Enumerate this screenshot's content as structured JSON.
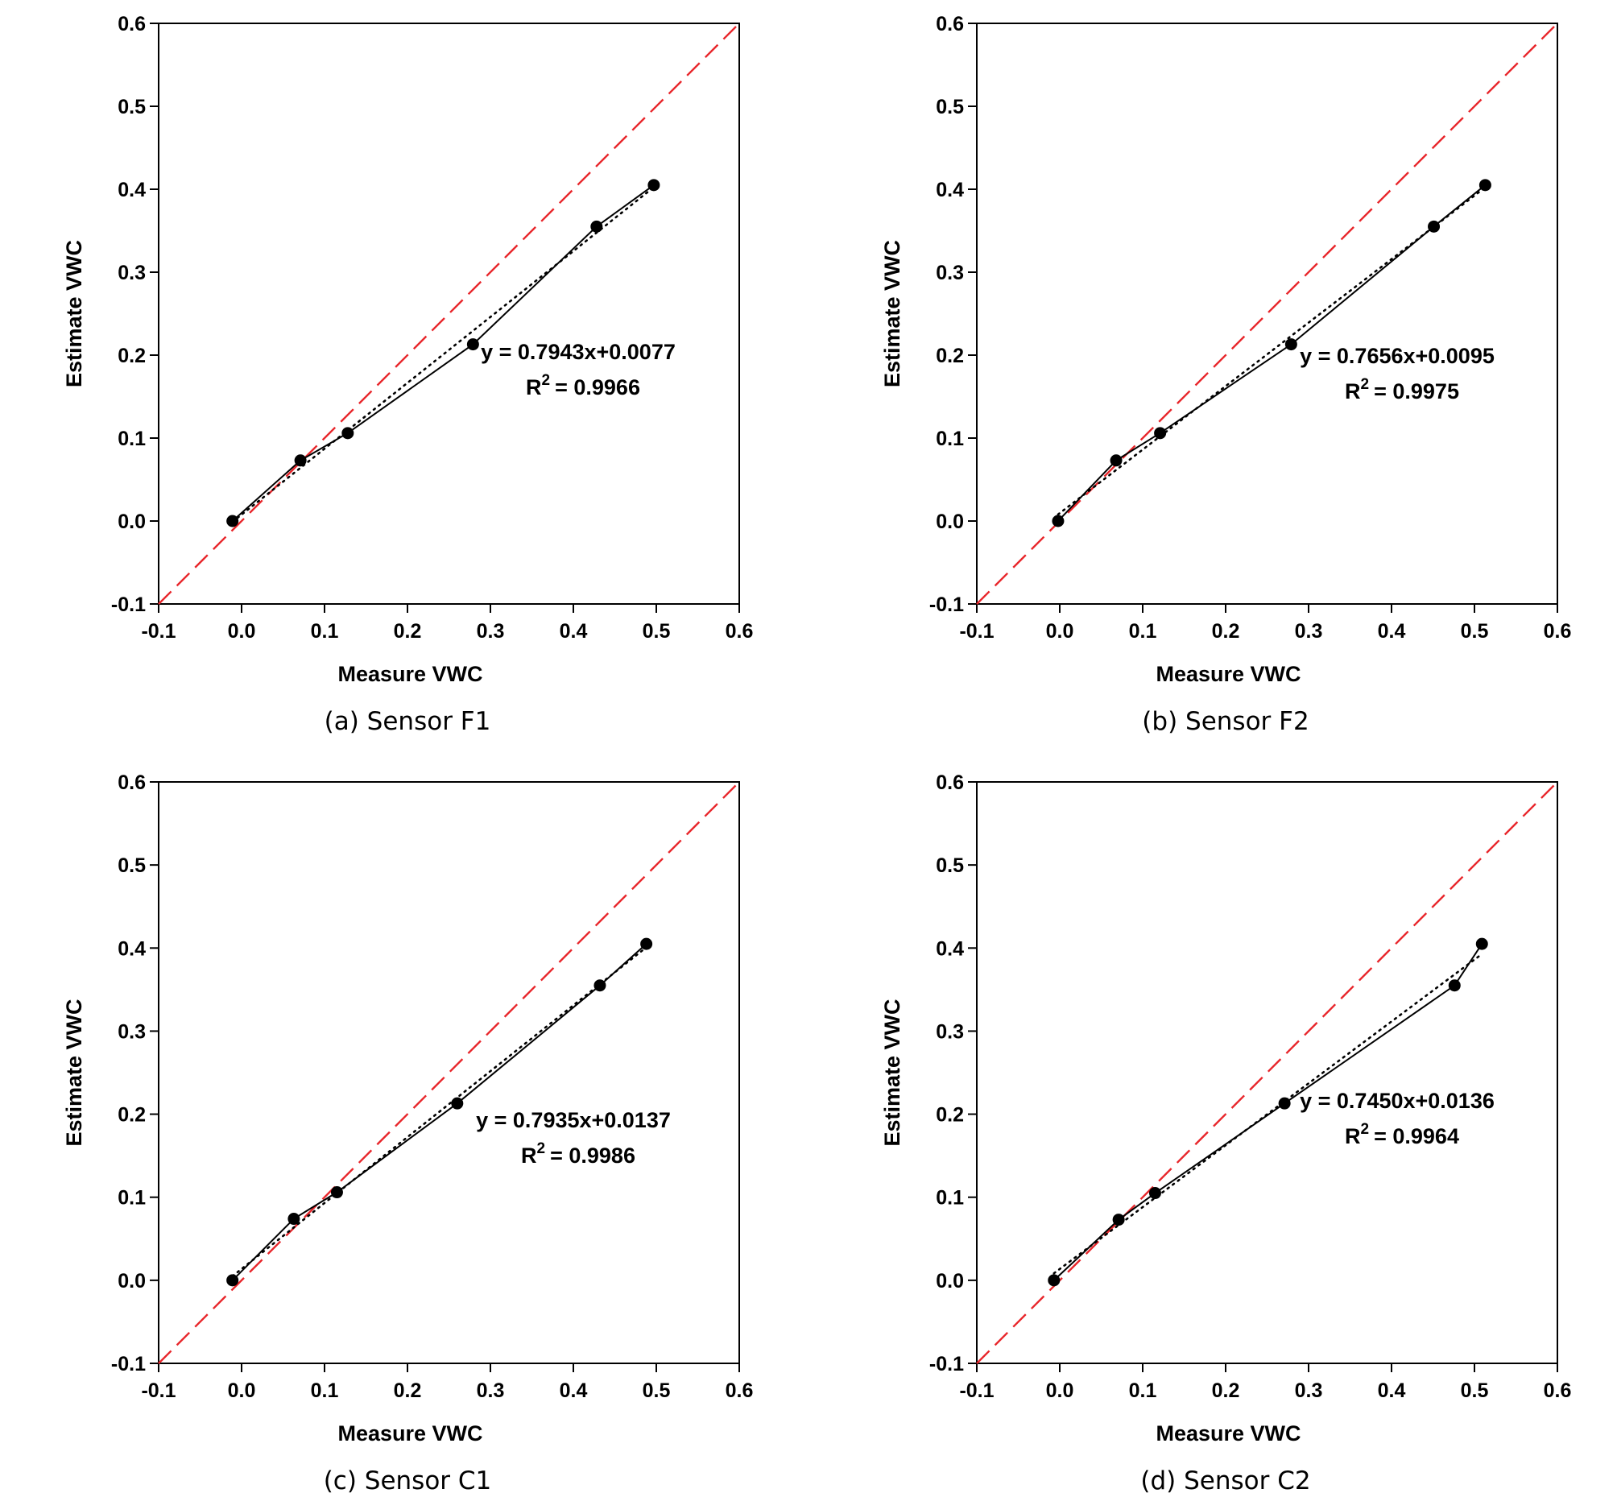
{
  "chart_data": [
    {
      "type": "line",
      "caption": "(a)  Sensor  F1",
      "xlabel": "Measure VWC",
      "ylabel": "Estimate VWC",
      "xlim": [
        -0.1,
        0.6
      ],
      "ylim": [
        -0.1,
        0.6
      ],
      "xticks": [
        "-0.1",
        "0.0",
        "0.1",
        "0.2",
        "0.3",
        "0.4",
        "0.5",
        "0.6"
      ],
      "yticks": [
        "-0.1",
        "0.0",
        "0.1",
        "0.2",
        "0.3",
        "0.4",
        "0.5",
        "0.6"
      ],
      "points": [
        [
          -0.011,
          0.0
        ],
        [
          0.071,
          0.073
        ],
        [
          0.128,
          0.106
        ],
        [
          0.279,
          0.213
        ],
        [
          0.428,
          0.355
        ],
        [
          0.497,
          0.405
        ]
      ],
      "fit": {
        "slope": 0.7943,
        "intercept": 0.0077
      },
      "equation": "y = 0.7943x+0.0077",
      "r2_value": "= 0.9966",
      "reference_line": "1:1",
      "reference_color": "#e8262b",
      "grid": false
    },
    {
      "type": "line",
      "caption": "(b)  Sensor  F2",
      "xlabel": "Measure VWC",
      "ylabel": "Estimate VWC",
      "xlim": [
        -0.1,
        0.6
      ],
      "ylim": [
        -0.1,
        0.6
      ],
      "xticks": [
        "-0.1",
        "0.0",
        "0.1",
        "0.2",
        "0.3",
        "0.4",
        "0.5",
        "0.6"
      ],
      "yticks": [
        "-0.1",
        "0.0",
        "0.1",
        "0.2",
        "0.3",
        "0.4",
        "0.5",
        "0.6"
      ],
      "points": [
        [
          -0.002,
          0.0
        ],
        [
          0.068,
          0.073
        ],
        [
          0.121,
          0.106
        ],
        [
          0.279,
          0.213
        ],
        [
          0.451,
          0.355
        ],
        [
          0.513,
          0.405
        ]
      ],
      "fit": {
        "slope": 0.7656,
        "intercept": 0.0095
      },
      "equation": "y = 0.7656x+0.0095",
      "r2_value": "= 0.9975",
      "reference_line": "1:1",
      "reference_color": "#e8262b",
      "grid": false
    },
    {
      "type": "line",
      "caption": "(c)  Sensor  C1",
      "xlabel": "Measure VWC",
      "ylabel": "Estimate VWC",
      "xlim": [
        -0.1,
        0.6
      ],
      "ylim": [
        -0.1,
        0.6
      ],
      "xticks": [
        "-0.1",
        "0.0",
        "0.1",
        "0.2",
        "0.3",
        "0.4",
        "0.5",
        "0.6"
      ],
      "yticks": [
        "-0.1",
        "0.0",
        "0.1",
        "0.2",
        "0.3",
        "0.4",
        "0.5",
        "0.6"
      ],
      "points": [
        [
          -0.011,
          0.0
        ],
        [
          0.063,
          0.074
        ],
        [
          0.115,
          0.106
        ],
        [
          0.26,
          0.213
        ],
        [
          0.432,
          0.355
        ],
        [
          0.488,
          0.405
        ]
      ],
      "fit": {
        "slope": 0.7935,
        "intercept": 0.0137
      },
      "equation": "y = 0.7935x+0.0137",
      "r2_value": "= 0.9986",
      "reference_line": "1:1",
      "reference_color": "#e8262b",
      "grid": false
    },
    {
      "type": "line",
      "caption": "(d)  Sensor  C2",
      "xlabel": "Measure VWC",
      "ylabel": "Estimate VWC",
      "xlim": [
        -0.1,
        0.6
      ],
      "ylim": [
        -0.1,
        0.6
      ],
      "xticks": [
        "-0.1",
        "0.0",
        "0.1",
        "0.2",
        "0.3",
        "0.4",
        "0.5",
        "0.6"
      ],
      "yticks": [
        "-0.1",
        "0.0",
        "0.1",
        "0.2",
        "0.3",
        "0.4",
        "0.5",
        "0.6"
      ],
      "points": [
        [
          -0.007,
          0.0
        ],
        [
          0.071,
          0.073
        ],
        [
          0.115,
          0.105
        ],
        [
          0.271,
          0.213
        ],
        [
          0.476,
          0.355
        ],
        [
          0.509,
          0.405
        ]
      ],
      "fit": {
        "slope": 0.745,
        "intercept": 0.0136
      },
      "equation": "y = 0.7450x+0.0136",
      "r2_value": "= 0.9964",
      "reference_line": "1:1",
      "reference_color": "#e8262b",
      "grid": false
    }
  ]
}
